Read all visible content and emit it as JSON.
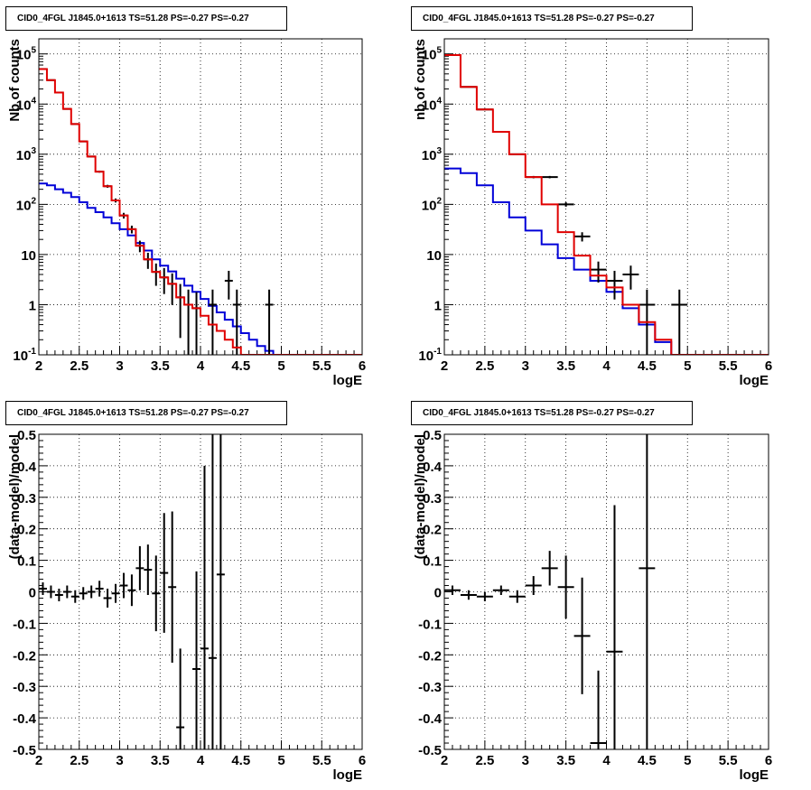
{
  "colors": {
    "data": "#000000",
    "model": "#e00000",
    "background_model": "#0000d8",
    "grid": "#000000"
  },
  "chart_data": [
    {
      "type": "step-histogram",
      "title": "CID0_4FGL J1845.0+1613 TS=51.28 PS=-0.27 PS=-0.27",
      "xlabel": "logE",
      "ylabel": "Nb of counts",
      "xlim": [
        2,
        6
      ],
      "ylim": [
        0.1,
        200000
      ],
      "yscale": "log",
      "grid": true,
      "xtick_labels": [
        "2",
        "2.5",
        "3",
        "3.5",
        "4",
        "4.5",
        "5",
        "5.5",
        "6"
      ],
      "ytick_labels": [
        "10^-1",
        "1",
        "10",
        "10^2",
        "10^3",
        "10^4",
        "10^5"
      ],
      "bin_edges": [
        2,
        2.1,
        2.2,
        2.3,
        2.4,
        2.5,
        2.6,
        2.7,
        2.8,
        2.9,
        3.0,
        3.1,
        3.2,
        3.3,
        3.4,
        3.5,
        3.6,
        3.7,
        3.8,
        3.9,
        4.0,
        4.1,
        4.2,
        4.3,
        4.4,
        4.5,
        4.6,
        4.7,
        4.8,
        4.9,
        5.0,
        5.1,
        5.2,
        5.3,
        5.4,
        5.5,
        5.6,
        5.7,
        5.8,
        5.9,
        6.0
      ],
      "series": [
        {
          "role": "model",
          "values": [
            50000,
            30000,
            17000,
            8000,
            4000,
            1800,
            900,
            450,
            230,
            120,
            60,
            32,
            15,
            8,
            4.5,
            3.5,
            2.6,
            1.4,
            1.0,
            0.85,
            0.6,
            0.4,
            0.3,
            0.2,
            0.14,
            0.1,
            0.1,
            0.1,
            0.1,
            0.1,
            0.1,
            0.1,
            0.1,
            0.1,
            0.1,
            0.1,
            0.1,
            0.1,
            0.1,
            0.1
          ]
        },
        {
          "role": "background_model",
          "values": [
            260,
            240,
            200,
            170,
            140,
            110,
            85,
            70,
            55,
            42,
            32,
            24,
            17,
            12,
            8,
            6,
            4.6,
            3.3,
            2.4,
            1.8,
            1.3,
            0.95,
            0.7,
            0.5,
            0.37,
            0.27,
            0.2,
            0.15,
            0.12,
            0.1,
            0.1,
            0.1,
            0.1,
            0.1,
            0.1,
            0.1,
            0.1,
            0.1,
            0.1,
            0.1
          ]
        },
        {
          "role": "data",
          "x": [
            2.05,
            2.15,
            2.25,
            2.35,
            2.45,
            2.55,
            2.65,
            2.75,
            2.85,
            2.95,
            3.05,
            3.15,
            3.25,
            3.35,
            3.45,
            3.55,
            3.65,
            3.75,
            3.85,
            3.95,
            4.15,
            4.35,
            4.45,
            4.85
          ],
          "y": [
            50000,
            30000,
            17000,
            8000,
            4000,
            1800,
            900,
            450,
            230,
            120,
            60,
            32,
            15,
            8,
            4.5,
            3.5,
            2.6,
            1.4,
            1.0,
            0.85,
            1,
            3,
            1,
            1
          ]
        }
      ]
    },
    {
      "type": "step-histogram",
      "title": "CID0_4FGL J1845.0+1613 TS=51.28 PS=-0.27 PS=-0.27",
      "xlabel": "logE",
      "ylabel": "nb of counts",
      "xlim": [
        2,
        6
      ],
      "ylim": [
        0.1,
        200000
      ],
      "yscale": "log",
      "grid": true,
      "xtick_labels": [
        "2",
        "2.5",
        "3",
        "3.5",
        "4",
        "4.5",
        "5",
        "5.5",
        "6"
      ],
      "ytick_labels": [
        "10^-1",
        "1",
        "10",
        "10^2",
        "10^3",
        "10^4",
        "10^5"
      ],
      "bin_edges": [
        2,
        2.2,
        2.4,
        2.6,
        2.8,
        3.0,
        3.2,
        3.4,
        3.6,
        3.8,
        4.0,
        4.2,
        4.4,
        4.6,
        4.8,
        5.0,
        5.2,
        5.4,
        5.6,
        5.8,
        6.0
      ],
      "series": [
        {
          "role": "model",
          "values": [
            95000,
            22000,
            7800,
            2800,
            1000,
            350,
            100,
            28,
            9.5,
            3.8,
            2.2,
            1.0,
            0.45,
            0.2,
            0.1,
            0.1,
            0.1,
            0.1,
            0.1,
            0.1
          ]
        },
        {
          "role": "background_model",
          "values": [
            520,
            420,
            240,
            110,
            55,
            30,
            16,
            8.5,
            5,
            3,
            1.8,
            0.85,
            0.4,
            0.18,
            0.1,
            0.1,
            0.1,
            0.1,
            0.1,
            0.1
          ]
        },
        {
          "role": "data",
          "x": [
            2.1,
            2.3,
            2.5,
            2.7,
            2.9,
            3.1,
            3.3,
            3.5,
            3.7,
            3.9,
            4.1,
            4.3,
            4.5,
            4.9
          ],
          "y": [
            95000,
            22000,
            7800,
            2800,
            1000,
            350,
            350,
            100,
            23,
            5,
            3,
            4,
            1,
            1
          ]
        }
      ]
    },
    {
      "type": "scatter",
      "title": "CID0_4FGL J1845.0+1613 TS=51.28 PS=-0.27 PS=-0.27",
      "xlabel": "logE",
      "ylabel": "(data-model)/model",
      "xlim": [
        2,
        6
      ],
      "ylim": [
        -0.5,
        0.5
      ],
      "grid": true,
      "xtick_labels": [
        "2",
        "2.5",
        "3",
        "3.5",
        "4",
        "4.5",
        "5",
        "5.5",
        "6"
      ],
      "ytick_labels": [
        "-0.5",
        "-0.4",
        "-0.3",
        "-0.2",
        "-0.1",
        "0",
        "0.1",
        "0.2",
        "0.3",
        "0.4",
        "0.5"
      ],
      "x_halfwidth": 0.05,
      "points": [
        {
          "x": 2.05,
          "y": 0.01,
          "err": 0.02
        },
        {
          "x": 2.15,
          "y": 0.0,
          "err": 0.02
        },
        {
          "x": 2.25,
          "y": -0.01,
          "err": 0.02
        },
        {
          "x": 2.35,
          "y": 0.0,
          "err": 0.02
        },
        {
          "x": 2.45,
          "y": -0.015,
          "err": 0.02
        },
        {
          "x": 2.55,
          "y": -0.005,
          "err": 0.02
        },
        {
          "x": 2.65,
          "y": 0.0,
          "err": 0.02
        },
        {
          "x": 2.75,
          "y": 0.01,
          "err": 0.025
        },
        {
          "x": 2.85,
          "y": -0.02,
          "err": 0.03
        },
        {
          "x": 2.95,
          "y": -0.005,
          "err": 0.03
        },
        {
          "x": 3.05,
          "y": 0.02,
          "err": 0.04
        },
        {
          "x": 3.15,
          "y": 0.005,
          "err": 0.05
        },
        {
          "x": 3.25,
          "y": 0.075,
          "err": 0.07
        },
        {
          "x": 3.35,
          "y": 0.07,
          "err": 0.08
        },
        {
          "x": 3.45,
          "y": -0.005,
          "err": 0.12
        },
        {
          "x": 3.55,
          "y": 0.06,
          "err": 0.19
        },
        {
          "x": 3.65,
          "y": 0.015,
          "err": 0.24
        },
        {
          "x": 3.75,
          "y": -0.43,
          "err": 0.25
        },
        {
          "x": 3.95,
          "y": -0.245,
          "err": 0.31
        },
        {
          "x": 4.05,
          "y": -0.18,
          "err": 0.58
        },
        {
          "x": 4.15,
          "y": -0.21,
          "err": 1.0
        },
        {
          "x": 4.25,
          "y": 0.055,
          "err": 1.0
        }
      ]
    },
    {
      "type": "scatter",
      "title": "CID0_4FGL J1845.0+1613 TS=51.28 PS=-0.27 PS=-0.27",
      "xlabel": "logE",
      "ylabel": "(data-model)/model",
      "xlim": [
        2,
        6
      ],
      "ylim": [
        -0.5,
        0.5
      ],
      "grid": true,
      "xtick_labels": [
        "2",
        "2.5",
        "3",
        "3.5",
        "4",
        "4.5",
        "5",
        "5.5",
        "6"
      ],
      "ytick_labels": [
        "-0.5",
        "-0.4",
        "-0.3",
        "-0.2",
        "-0.1",
        "0",
        "0.1",
        "0.2",
        "0.3",
        "0.4",
        "0.5"
      ],
      "x_halfwidth": 0.1,
      "points": [
        {
          "x": 2.1,
          "y": 0.005,
          "err": 0.015
        },
        {
          "x": 2.3,
          "y": -0.01,
          "err": 0.015
        },
        {
          "x": 2.5,
          "y": -0.015,
          "err": 0.015
        },
        {
          "x": 2.7,
          "y": 0.005,
          "err": 0.015
        },
        {
          "x": 2.9,
          "y": -0.015,
          "err": 0.02
        },
        {
          "x": 3.1,
          "y": 0.02,
          "err": 0.03
        },
        {
          "x": 3.3,
          "y": 0.075,
          "err": 0.055
        },
        {
          "x": 3.5,
          "y": 0.015,
          "err": 0.1
        },
        {
          "x": 3.7,
          "y": -0.14,
          "err": 0.185
        },
        {
          "x": 3.9,
          "y": -0.48,
          "err": 0.23
        },
        {
          "x": 4.1,
          "y": -0.19,
          "err": 0.465
        },
        {
          "x": 4.5,
          "y": 0.075,
          "err": 1.0
        }
      ]
    }
  ]
}
